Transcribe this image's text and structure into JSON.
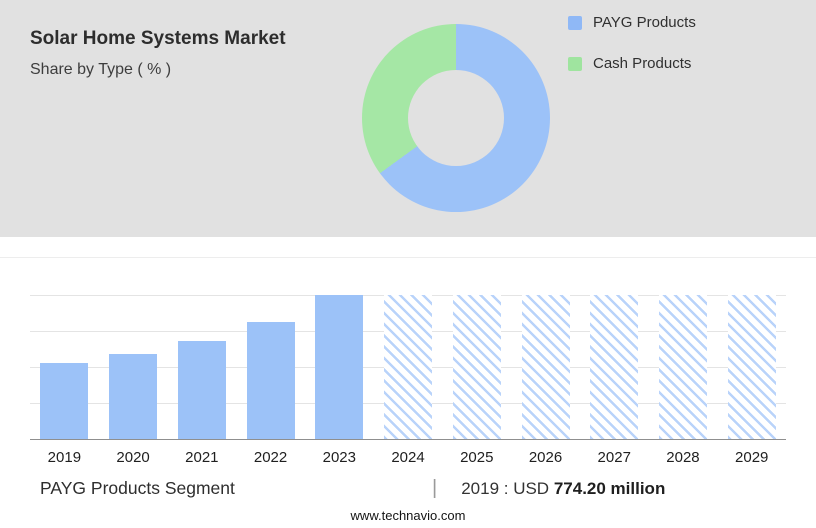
{
  "header": {
    "title": "Solar Home Systems Market",
    "subtitle": "Share by Type ( % )"
  },
  "legend": {
    "items": [
      {
        "label": "PAYG Products",
        "color": "#8fb8f6"
      },
      {
        "label": "Cash Products",
        "color": "#9fe49f"
      }
    ]
  },
  "chart_data": [
    {
      "type": "pie",
      "title": "Share by Type ( % )",
      "labels": [
        "PAYG Products",
        "Cash Products"
      ],
      "values": [
        65,
        35
      ],
      "colors": [
        "#9cc2f8",
        "#a5e7a5"
      ],
      "donut": true,
      "legend_position": "top-right",
      "value_labels_shown": false
    },
    {
      "type": "bar",
      "categories": [
        "2019",
        "2020",
        "2021",
        "2022",
        "2023",
        "2024",
        "2025",
        "2026",
        "2027",
        "2028",
        "2029"
      ],
      "values_relative_pct": [
        53,
        59,
        68,
        81,
        100,
        100,
        100,
        100,
        100,
        100,
        100
      ],
      "bar_styles": [
        "solid",
        "solid",
        "solid",
        "solid",
        "solid",
        "hatched",
        "hatched",
        "hatched",
        "hatched",
        "hatched",
        "hatched"
      ],
      "solid_color": "#9cc2f8",
      "hatch_color": "#b9d3fa",
      "ylim": [
        0,
        100
      ],
      "y_axis_labels_shown": false,
      "grid": true,
      "gridline_positions_pct": [
        0,
        25,
        50,
        75
      ],
      "xlabel": "",
      "ylabel": ""
    }
  ],
  "footer": {
    "segment_label": "PAYG Products Segment",
    "separator": "|",
    "value_prefix": "2019 : USD",
    "value_bold": "774.20 million"
  },
  "website": "www.technavio.com"
}
